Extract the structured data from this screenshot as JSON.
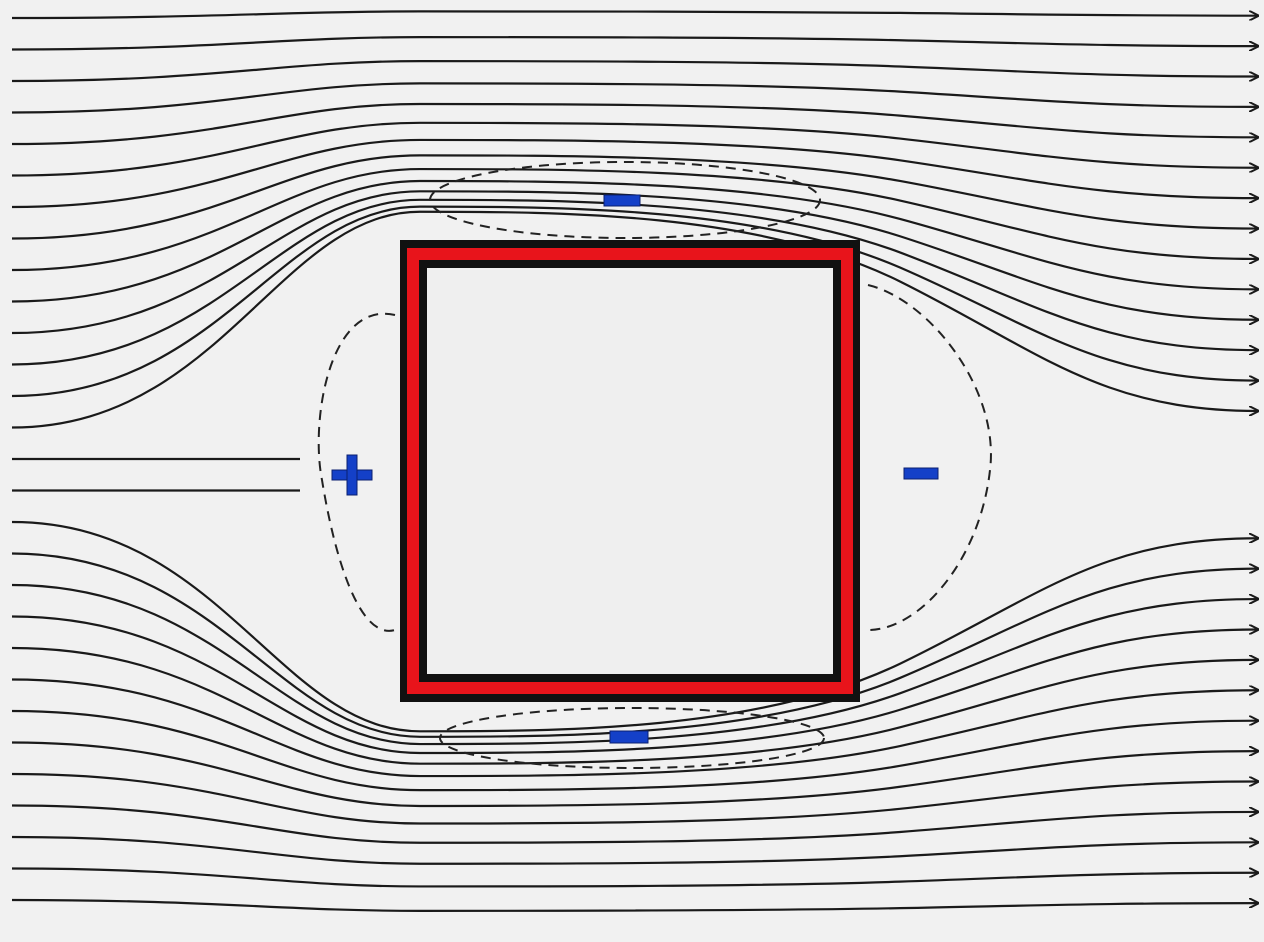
{
  "diagram": {
    "description_free": true,
    "building_color": "#e8141b",
    "building_outline_color": "#111111",
    "pressure_sign_color": "#1440c8",
    "streamline_color": "#1a1a1a",
    "pressure_zones": [
      {
        "id": "windward",
        "sign": "positive"
      },
      {
        "id": "roof-top",
        "sign": "negative"
      },
      {
        "id": "leeward",
        "sign": "negative"
      },
      {
        "id": "bottom-side",
        "sign": "negative"
      }
    ]
  }
}
